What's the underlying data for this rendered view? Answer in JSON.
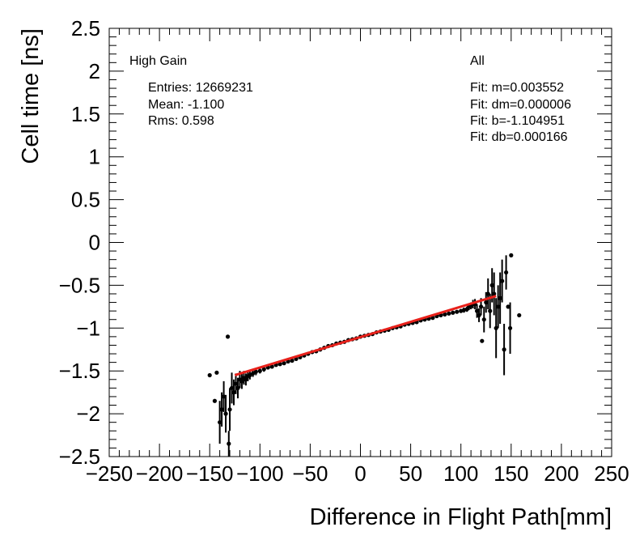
{
  "chart_data": {
    "type": "scatter",
    "xlabel": "Difference in Flight Path[mm]",
    "ylabel": "Cell time [ns]",
    "xlim": [
      -250,
      250
    ],
    "ylim": [
      -2.5,
      2.5
    ],
    "x_ticks": [
      -250,
      -200,
      -150,
      -100,
      -50,
      0,
      50,
      100,
      150,
      200,
      250
    ],
    "x_tick_labels": [
      "−250",
      "−200",
      "−150",
      "−100",
      "−50",
      "0",
      "50",
      "100",
      "150",
      "200",
      "250"
    ],
    "y_ticks": [
      2.5,
      2,
      1.5,
      1,
      0.5,
      0,
      -0.5,
      -1,
      -1.5,
      -2,
      -2.5
    ],
    "y_tick_labels": [
      "2.5",
      "2",
      "1.5",
      "1",
      "0.5",
      "0",
      "−0.5",
      "−1",
      "−1.5",
      "−2",
      "−2.5"
    ],
    "grid": false,
    "stats_left": {
      "title": "High Gain",
      "entries": "Entries: 12669231",
      "mean": "Mean: -1.100",
      "rms": "Rms: 0.598"
    },
    "stats_right": {
      "title": "All",
      "fit_m": "Fit: m=0.003552",
      "fit_dm": "Fit: dm=0.000006",
      "fit_b": "Fit: b=-1.104951",
      "fit_db": "Fit: db=0.000166"
    },
    "fit_line": {
      "x_range": [
        -125,
        135
      ],
      "slope": 0.003552,
      "intercept": -1.104951,
      "color": "#e8201a"
    },
    "marker_color": "#000000",
    "points": [
      {
        "x": -150,
        "y": -1.55
      },
      {
        "x": -145,
        "y": -1.85
      },
      {
        "x": -143,
        "y": -1.52
      },
      {
        "x": -140,
        "y": -2.1,
        "err": 0.25
      },
      {
        "x": -138,
        "y": -1.95,
        "err": 0.2
      },
      {
        "x": -136,
        "y": -1.8,
        "err": 0.18
      },
      {
        "x": -134,
        "y": -2.0,
        "err": 0.22
      },
      {
        "x": -132,
        "y": -1.1
      },
      {
        "x": -131,
        "y": -2.35,
        "err": 0.15
      },
      {
        "x": -130,
        "y": -1.95,
        "err": 0.25
      },
      {
        "x": -128,
        "y": -1.7,
        "err": 0.18
      },
      {
        "x": -126,
        "y": -1.75,
        "err": 0.15
      },
      {
        "x": -124,
        "y": -1.65,
        "err": 0.12
      },
      {
        "x": -122,
        "y": -1.7,
        "err": 0.12
      },
      {
        "x": -120,
        "y": -1.6,
        "err": 0.1
      },
      {
        "x": -118,
        "y": -1.62,
        "err": 0.09
      },
      {
        "x": -116,
        "y": -1.58,
        "err": 0.08
      },
      {
        "x": -114,
        "y": -1.6,
        "err": 0.07
      },
      {
        "x": -112,
        "y": -1.56,
        "err": 0.06
      },
      {
        "x": -110,
        "y": -1.55,
        "err": 0.05
      },
      {
        "x": -107,
        "y": -1.53,
        "err": 0.04
      },
      {
        "x": -104,
        "y": -1.51,
        "err": 0.04
      },
      {
        "x": -100,
        "y": -1.5,
        "err": 0.03
      },
      {
        "x": -96,
        "y": -1.48,
        "err": 0.03
      },
      {
        "x": -92,
        "y": -1.46,
        "err": 0.02
      },
      {
        "x": -88,
        "y": -1.45,
        "err": 0.02
      },
      {
        "x": -84,
        "y": -1.43,
        "err": 0.02
      },
      {
        "x": -80,
        "y": -1.42,
        "err": 0.02
      },
      {
        "x": -76,
        "y": -1.41,
        "err": 0.01
      },
      {
        "x": -72,
        "y": -1.39,
        "err": 0.01
      },
      {
        "x": -68,
        "y": -1.38,
        "err": 0.01
      },
      {
        "x": -64,
        "y": -1.36,
        "err": 0.01
      },
      {
        "x": -60,
        "y": -1.34,
        "err": 0.01
      },
      {
        "x": -56,
        "y": -1.32
      },
      {
        "x": -52,
        "y": -1.3
      },
      {
        "x": -48,
        "y": -1.28
      },
      {
        "x": -44,
        "y": -1.27
      },
      {
        "x": -40,
        "y": -1.25
      },
      {
        "x": -36,
        "y": -1.23
      },
      {
        "x": -32,
        "y": -1.21
      },
      {
        "x": -28,
        "y": -1.2
      },
      {
        "x": -24,
        "y": -1.18
      },
      {
        "x": -20,
        "y": -1.17
      },
      {
        "x": -16,
        "y": -1.16
      },
      {
        "x": -12,
        "y": -1.14
      },
      {
        "x": -8,
        "y": -1.13
      },
      {
        "x": -4,
        "y": -1.12
      },
      {
        "x": 0,
        "y": -1.1
      },
      {
        "x": 4,
        "y": -1.09
      },
      {
        "x": 8,
        "y": -1.08
      },
      {
        "x": 12,
        "y": -1.07
      },
      {
        "x": 16,
        "y": -1.05
      },
      {
        "x": 20,
        "y": -1.04
      },
      {
        "x": 24,
        "y": -1.03
      },
      {
        "x": 28,
        "y": -1.02
      },
      {
        "x": 32,
        "y": -1.0
      },
      {
        "x": 36,
        "y": -0.99
      },
      {
        "x": 40,
        "y": -0.98
      },
      {
        "x": 44,
        "y": -0.96
      },
      {
        "x": 48,
        "y": -0.95
      },
      {
        "x": 52,
        "y": -0.94
      },
      {
        "x": 56,
        "y": -0.93
      },
      {
        "x": 60,
        "y": -0.91
      },
      {
        "x": 64,
        "y": -0.9
      },
      {
        "x": 68,
        "y": -0.89
      },
      {
        "x": 72,
        "y": -0.88
      },
      {
        "x": 76,
        "y": -0.86
      },
      {
        "x": 80,
        "y": -0.85,
        "err": 0.01
      },
      {
        "x": 84,
        "y": -0.84,
        "err": 0.01
      },
      {
        "x": 88,
        "y": -0.83,
        "err": 0.01
      },
      {
        "x": 92,
        "y": -0.82,
        "err": 0.02
      },
      {
        "x": 96,
        "y": -0.81,
        "err": 0.02
      },
      {
        "x": 100,
        "y": -0.8,
        "err": 0.02
      },
      {
        "x": 103,
        "y": -0.79,
        "err": 0.03
      },
      {
        "x": 106,
        "y": -0.78,
        "err": 0.03
      },
      {
        "x": 108,
        "y": -0.75,
        "err": 0.04
      },
      {
        "x": 110,
        "y": -0.74,
        "err": 0.04
      },
      {
        "x": 112,
        "y": -0.72,
        "err": 0.05
      },
      {
        "x": 114,
        "y": -0.72,
        "err": 0.06
      },
      {
        "x": 116,
        "y": -0.8,
        "err": 0.08
      },
      {
        "x": 118,
        "y": -0.85,
        "err": 0.08
      },
      {
        "x": 120,
        "y": -0.75,
        "err": 0.1
      },
      {
        "x": 121,
        "y": -1.15
      },
      {
        "x": 123,
        "y": -0.9,
        "err": 0.15
      },
      {
        "x": 125,
        "y": -0.7,
        "err": 0.12
      },
      {
        "x": 127,
        "y": -0.6,
        "err": 0.18
      },
      {
        "x": 129,
        "y": -0.8,
        "err": 0.2
      },
      {
        "x": 131,
        "y": -0.5,
        "err": 0.2
      },
      {
        "x": 133,
        "y": -0.6,
        "err": 0.25
      },
      {
        "x": 135,
        "y": -1.0,
        "err": 0.35
      },
      {
        "x": 137,
        "y": -0.75,
        "err": 0.25
      },
      {
        "x": 139,
        "y": -0.65,
        "err": 0.3
      },
      {
        "x": 141,
        "y": -0.45,
        "err": 0.25
      },
      {
        "x": 143,
        "y": -1.25,
        "err": 0.3
      },
      {
        "x": 145,
        "y": -0.35,
        "err": 0.2
      },
      {
        "x": 147,
        "y": -0.75
      },
      {
        "x": 149,
        "y": -1.0,
        "err": 0.3
      },
      {
        "x": 150,
        "y": -0.15
      },
      {
        "x": 158,
        "y": -0.85
      }
    ]
  }
}
